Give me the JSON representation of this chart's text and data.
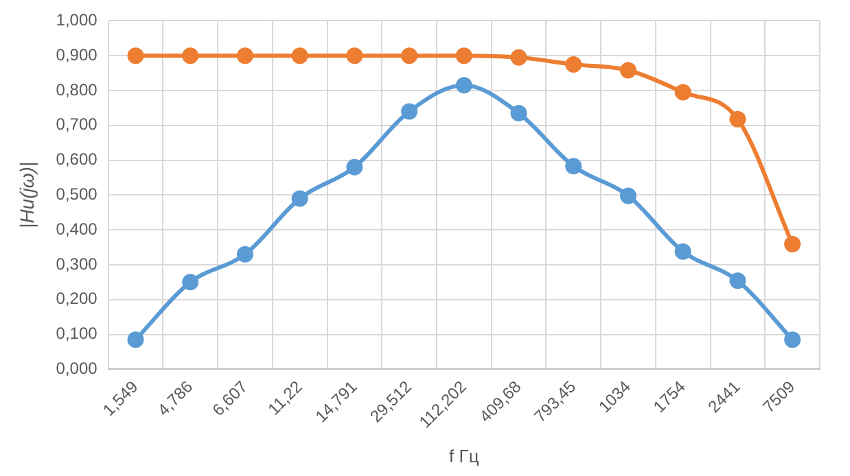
{
  "chart_data": {
    "type": "line",
    "xlabel": "f Гц",
    "ylabel": "|Hu(jω)|",
    "categories": [
      "1,549",
      "4,786",
      "6,607",
      "11,22",
      "14,791",
      "29,512",
      "112,202",
      "409,68",
      "793,45",
      "1034",
      "1754",
      "2441",
      "7509"
    ],
    "series": [
      {
        "color": "#5b9bd5",
        "values": [
          0.085,
          0.25,
          0.33,
          0.49,
          0.58,
          0.74,
          0.815,
          0.735,
          0.583,
          0.498,
          0.338,
          0.254,
          0.085
        ]
      },
      {
        "color": "#ed7d31",
        "values": [
          0.9,
          0.9,
          0.9,
          0.9,
          0.9,
          0.9,
          0.9,
          0.895,
          0.875,
          0.858,
          0.795,
          0.718,
          0.359
        ]
      }
    ],
    "ylim": [
      0,
      1
    ],
    "yticks": [
      {
        "value": 0,
        "label": "0,000"
      },
      {
        "value": 0.1,
        "label": "0,100"
      },
      {
        "value": 0.2,
        "label": "0,200"
      },
      {
        "value": 0.3,
        "label": "0,300"
      },
      {
        "value": 0.4,
        "label": "0,400"
      },
      {
        "value": 0.5,
        "label": "0,500"
      },
      {
        "value": 0.6,
        "label": "0,600"
      },
      {
        "value": 0.7,
        "label": "0,700"
      },
      {
        "value": 0.8,
        "label": "0,800"
      },
      {
        "value": 0.9,
        "label": "0,900"
      },
      {
        "value": 1,
        "label": "1,000"
      }
    ],
    "grid": true,
    "legend": false,
    "marker": "circle",
    "line_style": "solid"
  }
}
